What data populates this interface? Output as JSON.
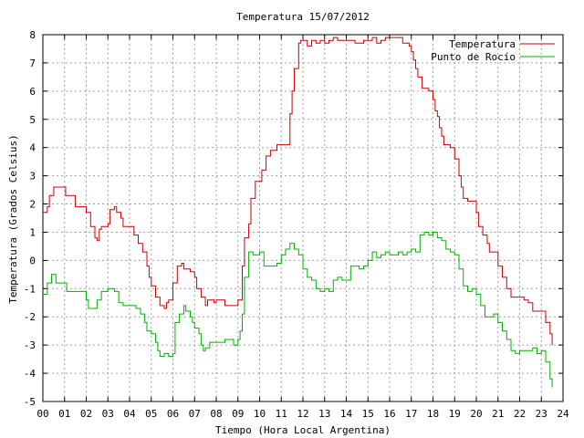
{
  "chart_data": {
    "type": "line",
    "title": "Temperatura 15/07/2012",
    "xlabel": "Tiempo (Hora Local Argentina)",
    "ylabel": "Temperatura (Grados Celsius)",
    "xlim": [
      0,
      24
    ],
    "ylim": [
      -5,
      8
    ],
    "grid": true,
    "legend": "top-right",
    "x_ticks": [
      0,
      1,
      2,
      3,
      4,
      5,
      6,
      7,
      8,
      9,
      10,
      11,
      12,
      13,
      14,
      15,
      16,
      17,
      18,
      19,
      20,
      21,
      22,
      23,
      24
    ],
    "x_tick_labels": [
      "00",
      "01",
      "02",
      "03",
      "04",
      "05",
      "06",
      "07",
      "08",
      "09",
      "10",
      "11",
      "12",
      "13",
      "14",
      "15",
      "16",
      "17",
      "18",
      "19",
      "20",
      "21",
      "22",
      "23",
      "24"
    ],
    "y_ticks": [
      -5,
      -4,
      -3,
      -2,
      -1,
      0,
      1,
      2,
      3,
      4,
      5,
      6,
      7,
      8
    ],
    "series": [
      {
        "name": "Temperatura",
        "color": "#cc0000",
        "x": [
          0,
          0.1,
          0.2,
          0.3,
          0.5,
          1.0,
          1.05,
          1.5,
          1.95,
          2.0,
          2.2,
          2.4,
          2.5,
          2.6,
          2.7,
          3.0,
          3.1,
          3.3,
          3.4,
          3.6,
          3.7,
          4.1,
          4.2,
          4.4,
          4.6,
          4.8,
          4.9,
          5.0,
          5.2,
          5.4,
          5.6,
          5.7,
          5.8,
          6.0,
          6.2,
          6.4,
          6.5,
          6.6,
          6.8,
          7.0,
          7.1,
          7.3,
          7.5,
          7.6,
          7.8,
          7.9,
          8.0,
          8.2,
          8.4,
          8.6,
          8.8,
          9.0,
          9.2,
          9.3,
          9.5,
          9.6,
          9.8,
          9.9,
          10.0,
          10.1,
          10.3,
          10.5,
          10.8,
          11.0,
          11.2,
          11.4,
          11.5,
          11.6,
          11.8,
          11.9,
          12.0,
          12.2,
          12.4,
          12.6,
          12.8,
          13.0,
          13.2,
          13.4,
          13.6,
          13.8,
          14.0,
          14.2,
          14.4,
          14.6,
          14.8,
          15.0,
          15.2,
          15.4,
          15.6,
          15.8,
          16.0,
          16.2,
          16.4,
          16.6,
          16.8,
          16.9,
          17.0,
          17.1,
          17.2,
          17.3,
          17.5,
          17.7,
          17.8,
          18.0,
          18.1,
          18.2,
          18.3,
          18.4,
          18.5,
          18.6,
          18.8,
          19.0,
          19.2,
          19.3,
          19.4,
          19.6,
          19.8,
          20.0,
          20.1,
          20.3,
          20.5,
          20.6,
          20.8,
          20.9,
          21.0,
          21.2,
          21.4,
          21.6,
          21.8,
          22.0,
          22.2,
          22.4,
          22.6,
          22.8,
          23.0,
          23.2,
          23.4,
          23.5
        ],
        "y": [
          1.7,
          1.7,
          1.9,
          2.3,
          2.6,
          2.6,
          2.3,
          1.9,
          1.9,
          1.7,
          1.2,
          0.8,
          0.7,
          1.1,
          1.2,
          1.3,
          1.8,
          1.9,
          1.7,
          1.5,
          1.2,
          1.2,
          0.9,
          0.6,
          0.3,
          -0.2,
          -0.6,
          -0.9,
          -1.3,
          -1.6,
          -1.7,
          -1.5,
          -1.4,
          -0.8,
          -0.2,
          -0.1,
          -0.3,
          -0.3,
          -0.4,
          -0.6,
          -1.0,
          -1.3,
          -1.6,
          -1.4,
          -1.4,
          -1.5,
          -1.4,
          -1.4,
          -1.6,
          -1.6,
          -1.6,
          -1.4,
          -0.2,
          0.8,
          1.3,
          2.2,
          2.8,
          2.8,
          2.8,
          3.2,
          3.7,
          3.9,
          4.1,
          4.1,
          4.1,
          5.2,
          6.0,
          6.8,
          7.7,
          7.8,
          7.8,
          7.6,
          7.8,
          7.7,
          7.8,
          7.7,
          7.8,
          7.9,
          7.8,
          7.8,
          7.8,
          7.8,
          7.7,
          7.7,
          7.8,
          7.8,
          7.9,
          7.7,
          7.8,
          7.9,
          7.9,
          7.9,
          7.9,
          7.7,
          7.7,
          7.6,
          7.4,
          7.1,
          6.8,
          6.5,
          6.1,
          6.1,
          6.0,
          5.7,
          5.3,
          5.1,
          4.7,
          4.4,
          4.1,
          4.1,
          4.0,
          3.6,
          3.0,
          2.6,
          2.2,
          2.1,
          2.1,
          1.7,
          1.2,
          0.9,
          0.6,
          0.3,
          0.3,
          0.3,
          -0.2,
          -0.6,
          -1.0,
          -1.3,
          -1.3,
          -1.3,
          -1.4,
          -1.5,
          -1.8,
          -1.8,
          -1.8,
          -2.2,
          -2.6,
          -3.0
        ]
      },
      {
        "name": "Punto de Rocío",
        "color": "#00b000",
        "x": [
          0,
          0.2,
          0.4,
          0.6,
          1.0,
          1.1,
          1.5,
          1.8,
          2.0,
          2.1,
          2.2,
          2.5,
          2.7,
          3.0,
          3.2,
          3.3,
          3.5,
          3.7,
          4.0,
          4.3,
          4.5,
          4.7,
          4.8,
          5.0,
          5.2,
          5.3,
          5.4,
          5.6,
          5.8,
          6.0,
          6.1,
          6.3,
          6.5,
          6.6,
          6.8,
          6.9,
          7.0,
          7.2,
          7.3,
          7.4,
          7.5,
          7.7,
          7.9,
          8.2,
          8.4,
          8.6,
          8.8,
          9.0,
          9.1,
          9.2,
          9.3,
          9.5,
          9.7,
          9.9,
          10.0,
          10.2,
          10.4,
          10.6,
          10.8,
          11.0,
          11.2,
          11.4,
          11.6,
          11.8,
          12.0,
          12.2,
          12.4,
          12.6,
          12.8,
          13.0,
          13.2,
          13.4,
          13.6,
          13.8,
          14.0,
          14.2,
          14.4,
          14.6,
          14.8,
          15.0,
          15.2,
          15.4,
          15.6,
          15.8,
          16.0,
          16.2,
          16.4,
          16.6,
          16.8,
          17.0,
          17.2,
          17.4,
          17.6,
          17.8,
          18.0,
          18.2,
          18.4,
          18.6,
          18.8,
          19.0,
          19.2,
          19.4,
          19.6,
          19.8,
          20.0,
          20.2,
          20.4,
          20.6,
          20.8,
          21.0,
          21.2,
          21.4,
          21.6,
          21.8,
          22.0,
          22.2,
          22.4,
          22.6,
          22.8,
          23.0,
          23.2,
          23.4,
          23.5
        ],
        "y": [
          -1.2,
          -0.8,
          -0.5,
          -0.8,
          -0.8,
          -1.1,
          -1.1,
          -1.1,
          -1.4,
          -1.7,
          -1.7,
          -1.4,
          -1.1,
          -1.0,
          -1.0,
          -1.1,
          -1.5,
          -1.6,
          -1.6,
          -1.7,
          -1.9,
          -2.2,
          -2.5,
          -2.6,
          -2.9,
          -3.2,
          -3.4,
          -3.3,
          -3.4,
          -3.3,
          -2.2,
          -1.9,
          -1.6,
          -1.8,
          -2.0,
          -2.2,
          -2.4,
          -2.6,
          -3.0,
          -3.2,
          -3.1,
          -2.9,
          -2.9,
          -2.9,
          -2.8,
          -2.8,
          -3.0,
          -2.8,
          -2.5,
          -1.9,
          -0.6,
          0.3,
          0.2,
          0.2,
          0.3,
          -0.2,
          -0.2,
          -0.2,
          -0.1,
          0.2,
          0.4,
          0.6,
          0.4,
          0.2,
          -0.3,
          -0.6,
          -0.7,
          -1.0,
          -1.1,
          -1.0,
          -1.1,
          -0.7,
          -0.6,
          -0.7,
          -0.7,
          -0.2,
          -0.2,
          -0.3,
          -0.2,
          0.0,
          0.3,
          0.1,
          0.2,
          0.3,
          0.2,
          0.2,
          0.3,
          0.2,
          0.3,
          0.4,
          0.3,
          0.9,
          1.0,
          0.9,
          1.0,
          0.8,
          0.7,
          0.4,
          0.3,
          0.2,
          -0.3,
          -0.9,
          -1.1,
          -1.0,
          -1.2,
          -1.6,
          -2.0,
          -2.0,
          -1.9,
          -2.2,
          -2.5,
          -2.8,
          -3.2,
          -3.3,
          -3.2,
          -3.2,
          -3.2,
          -3.1,
          -3.3,
          -3.2,
          -3.6,
          -4.2,
          -4.5
        ]
      }
    ]
  }
}
